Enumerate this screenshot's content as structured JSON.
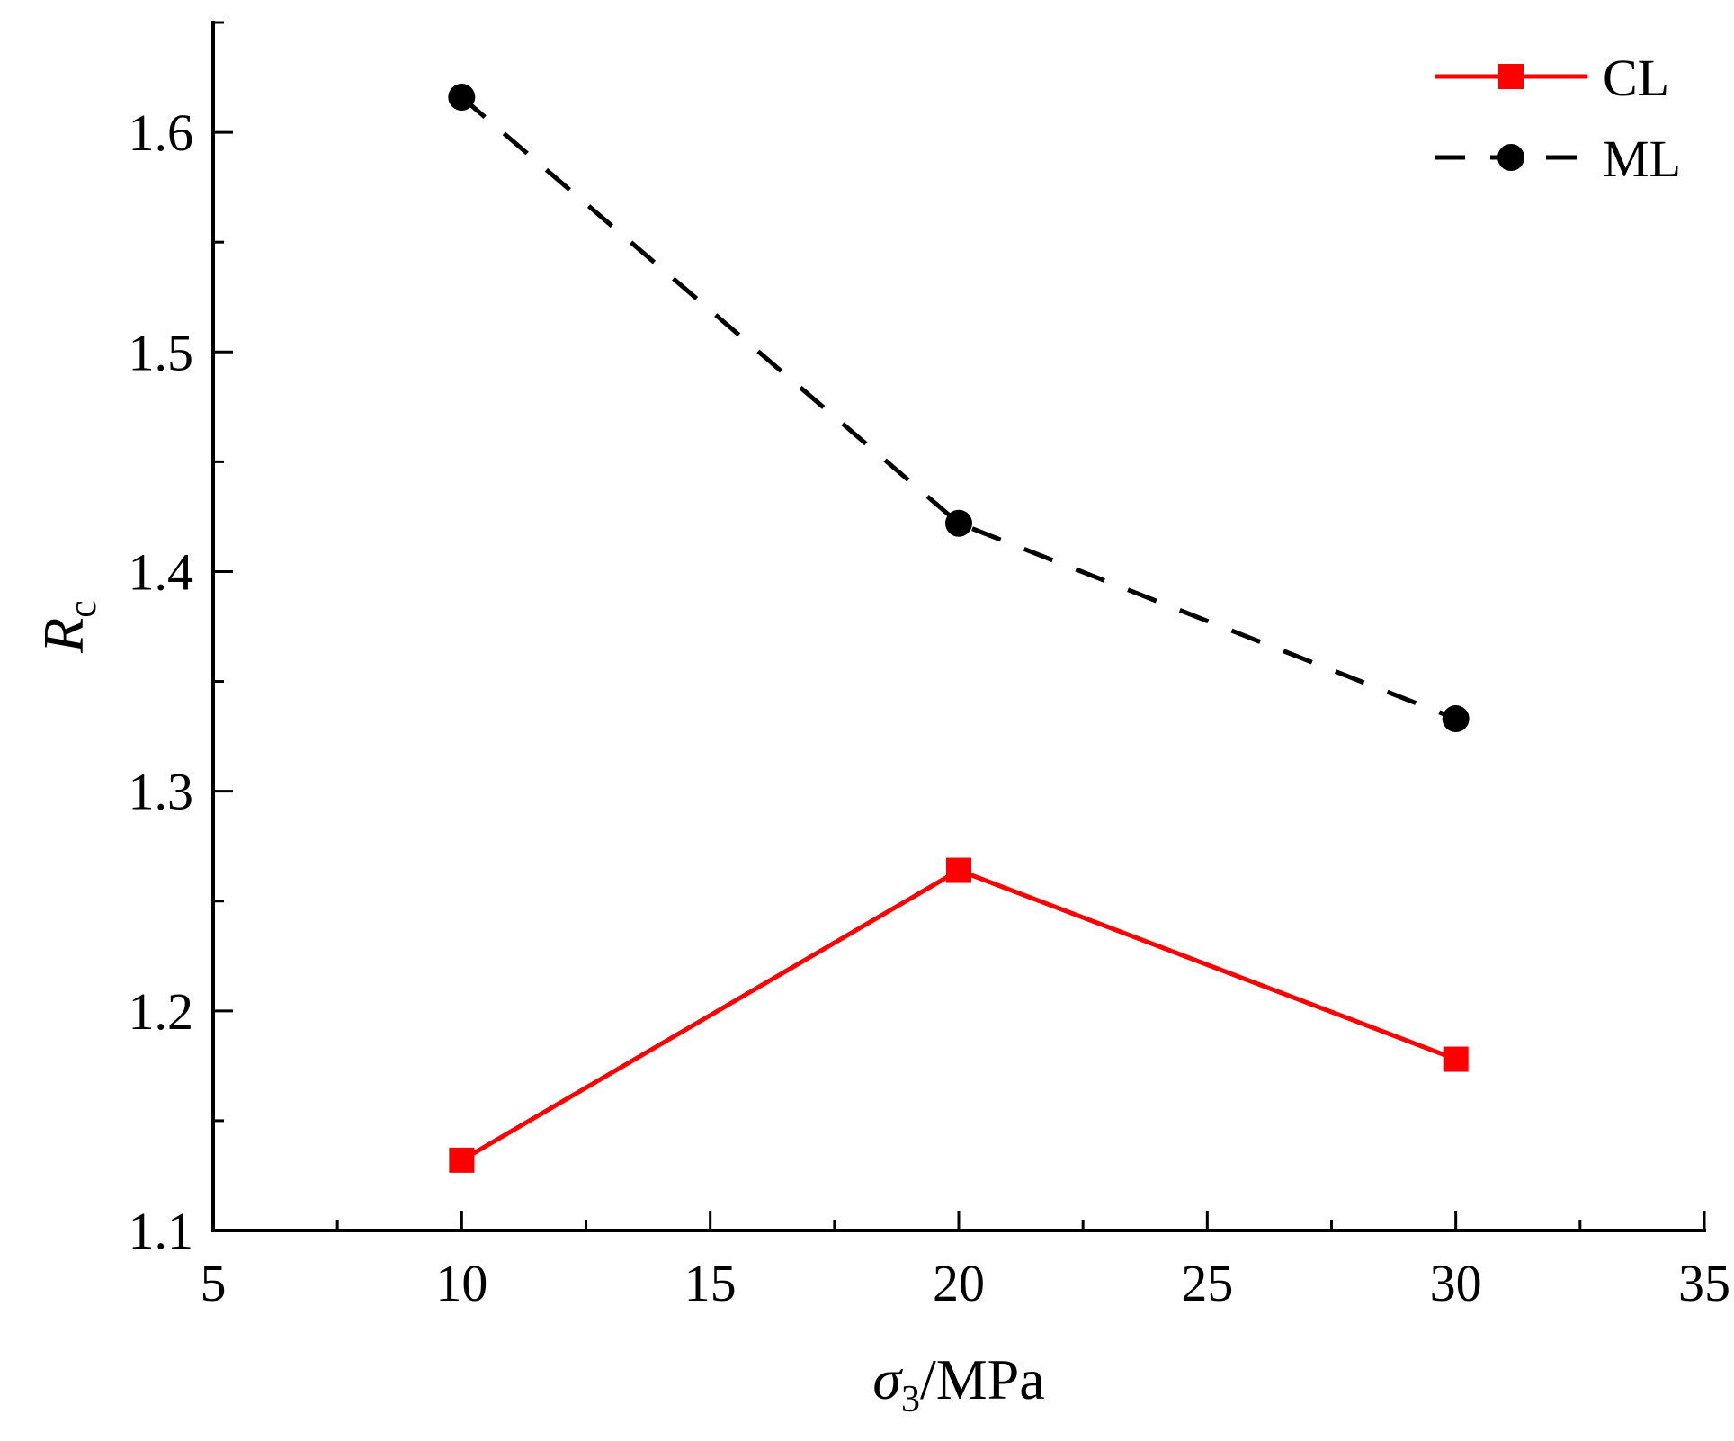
{
  "chart_data": {
    "type": "line",
    "title": "",
    "xlabel": {
      "symbol": "σ",
      "subscript": "3",
      "unit": "/MPa"
    },
    "ylabel": {
      "symbol": "R",
      "subscript": "c"
    },
    "xlim": [
      5,
      35
    ],
    "ylim": [
      1.1,
      1.65
    ],
    "xticks": [
      5,
      10,
      15,
      20,
      25,
      30,
      35
    ],
    "xtick_labels": [
      "5",
      "10",
      "15",
      "20",
      "25",
      "30",
      "35"
    ],
    "yticks": [
      1.1,
      1.2,
      1.3,
      1.4,
      1.5,
      1.6
    ],
    "ytick_labels": [
      "1.1",
      "1.2",
      "1.3",
      "1.4",
      "1.5",
      "1.6"
    ],
    "grid": false,
    "legend_position": "top-right",
    "series": [
      {
        "name": "CL",
        "x": [
          10,
          20,
          30
        ],
        "values": [
          1.132,
          1.264,
          1.178
        ],
        "color": "#ff0000",
        "marker": "square",
        "line_style": "solid"
      },
      {
        "name": "ML",
        "x": [
          10,
          20,
          30
        ],
        "values": [
          1.616,
          1.422,
          1.333
        ],
        "color": "#000000",
        "marker": "circle",
        "line_style": "dashed"
      }
    ]
  }
}
